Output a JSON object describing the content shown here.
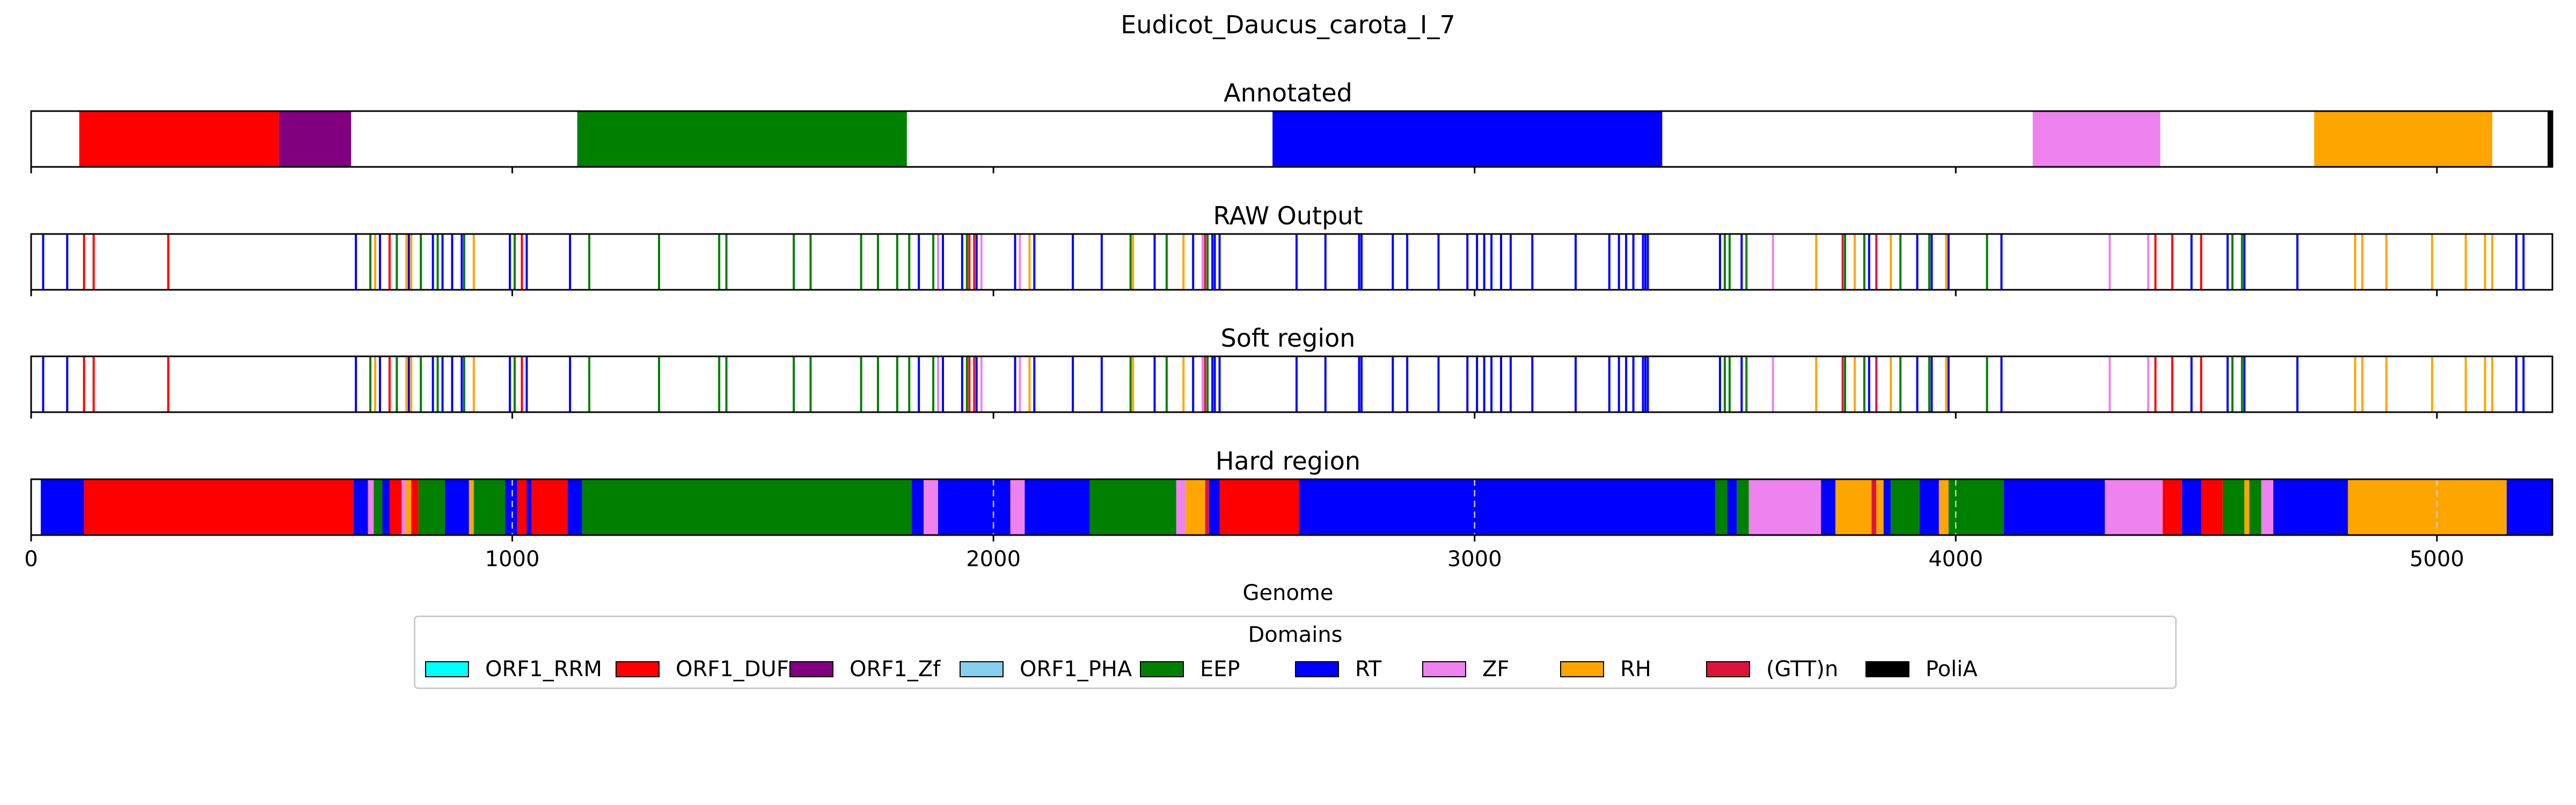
{
  "figure_title": "Eudicot_Daucus_carota_I_7",
  "legend": {
    "title": "Domains",
    "items": [
      {
        "label": "ORF1_RRM",
        "color": "#00ffff"
      },
      {
        "label": "ORF1_DUF",
        "color": "#ff0000"
      },
      {
        "label": "ORF1_Zf",
        "color": "#800080"
      },
      {
        "label": "ORF1_PHA",
        "color": "#87ceeb"
      },
      {
        "label": "EEP",
        "color": "#008000"
      },
      {
        "label": "RT",
        "color": "#0000ff"
      },
      {
        "label": "ZF",
        "color": "#ee82ee"
      },
      {
        "label": "RH",
        "color": "#ffa500"
      },
      {
        "label": "(GTT)n",
        "color": "#dc143c"
      },
      {
        "label": "PoliA",
        "color": "#000000"
      }
    ]
  },
  "chart_data": {
    "type": "track",
    "xlabel": "Genome",
    "xlim": [
      0,
      5240
    ],
    "xticks": [
      0,
      1000,
      2000,
      3000,
      4000,
      5000
    ],
    "grid": "dashed vertical lines on Hard region only",
    "tracks": [
      {
        "title": "Annotated",
        "segments": [
          {
            "domain": "ORF1_DUF",
            "start": 100,
            "end": 515
          },
          {
            "domain": "ORF1_Zf",
            "start": 515,
            "end": 665
          },
          {
            "domain": "EEP",
            "start": 1135,
            "end": 1820
          },
          {
            "domain": "RT",
            "start": 2580,
            "end": 3390
          },
          {
            "domain": "ZF",
            "start": 4160,
            "end": 4425
          },
          {
            "domain": "RH",
            "start": 4745,
            "end": 5115
          },
          {
            "domain": "PoliA",
            "start": 5230,
            "end": 5240
          }
        ]
      },
      {
        "title": "RAW Output",
        "marks": [
          {
            "domain": "RT",
            "x": [
              25,
              75,
              675,
              725,
              785,
              835,
              855,
              875,
              895,
              995,
              1030,
              1120,
              1845,
              1895,
              1935,
              1965,
              2045,
              2085,
              2165,
              2225,
              2335,
              2415,
              2435,
              2455,
              2460,
              2470,
              2630,
              2690,
              2760,
              2765,
              2830,
              2860,
              2925,
              2985,
              3005,
              3020,
              3035,
              3055,
              3075,
              3120,
              3210,
              3280,
              3300,
              3315,
              3330,
              3350,
              3355,
              3360,
              3510,
              3555,
              3820,
              3920,
              3950,
              3985,
              4095,
              4490,
              4565,
              4600,
              4710,
              5165,
              5180
            ]
          },
          {
            "domain": "ORF1_DUF",
            "x": [
              110,
              130,
              285,
              745,
              1020,
              1950,
              4415,
              4450,
              4510
            ]
          },
          {
            "domain": "EEP",
            "x": [
              705,
              760,
              810,
              845,
              900,
              1005,
              1160,
              1305,
              1430,
              1445,
              1585,
              1620,
              1725,
              1760,
              1800,
              1825,
              1875,
              1945,
              2285,
              2360,
              2445,
              3520,
              3530,
              3565,
              3770,
              3810,
              3885,
              3945,
              4065,
              4575,
              4595
            ]
          },
          {
            "domain": "ZF",
            "x": [
              1885,
              1975,
              2055,
              2435,
              3620,
              4320,
              4400
            ]
          },
          {
            "domain": "RH",
            "x": [
              715,
              780,
              790,
              920,
              2075,
              2290,
              2395,
              3710,
              3790,
              3865,
              3980,
              4830,
              4845,
              4895,
              4990,
              5060,
              5100,
              5115
            ]
          },
          {
            "domain": "(GTT)n",
            "x": [
              1960,
              2440,
              3765,
              3835
            ]
          }
        ]
      },
      {
        "title": "Soft region",
        "marks": [
          {
            "domain": "RT",
            "x": [
              25,
              75,
              675,
              725,
              785,
              835,
              855,
              875,
              895,
              995,
              1030,
              1120,
              1845,
              1895,
              1935,
              1965,
              2045,
              2085,
              2165,
              2225,
              2335,
              2415,
              2435,
              2455,
              2460,
              2470,
              2630,
              2690,
              2760,
              2765,
              2830,
              2860,
              2925,
              2985,
              3005,
              3020,
              3035,
              3055,
              3075,
              3120,
              3210,
              3280,
              3300,
              3315,
              3330,
              3350,
              3355,
              3360,
              3510,
              3555,
              3820,
              3920,
              3950,
              3985,
              4095,
              4490,
              4565,
              4600,
              4710,
              5165,
              5180
            ]
          },
          {
            "domain": "ORF1_DUF",
            "x": [
              110,
              130,
              285,
              745,
              1020,
              1950,
              4415,
              4450,
              4510
            ]
          },
          {
            "domain": "EEP",
            "x": [
              705,
              760,
              810,
              845,
              900,
              1005,
              1160,
              1305,
              1430,
              1445,
              1585,
              1620,
              1725,
              1760,
              1800,
              1825,
              1875,
              1945,
              2285,
              2360,
              2445,
              3520,
              3530,
              3565,
              3770,
              3810,
              3885,
              3945,
              4065,
              4575,
              4595
            ]
          },
          {
            "domain": "ZF",
            "x": [
              1885,
              1975,
              2055,
              2435,
              3620,
              4320,
              4400
            ]
          },
          {
            "domain": "RH",
            "x": [
              715,
              780,
              790,
              920,
              2075,
              2290,
              2395,
              3710,
              3790,
              3865,
              3980,
              4830,
              4845,
              4895,
              4990,
              5060,
              5100,
              5115
            ]
          },
          {
            "domain": "(GTT)n",
            "x": [
              1960,
              2440,
              3765,
              3835
            ]
          }
        ]
      },
      {
        "title": "Hard region",
        "segments": [
          {
            "domain": "RT",
            "start": 20,
            "end": 110
          },
          {
            "domain": "ORF1_DUF",
            "start": 110,
            "end": 670
          },
          {
            "domain": "RT",
            "start": 670,
            "end": 700
          },
          {
            "domain": "ZF",
            "start": 700,
            "end": 712
          },
          {
            "domain": "EEP",
            "start": 712,
            "end": 730
          },
          {
            "domain": "RT",
            "start": 730,
            "end": 745
          },
          {
            "domain": "ORF1_DUF",
            "start": 745,
            "end": 770
          },
          {
            "domain": "ZF",
            "start": 770,
            "end": 778
          },
          {
            "domain": "RH",
            "start": 778,
            "end": 790
          },
          {
            "domain": "ORF1_DUF",
            "start": 790,
            "end": 805
          },
          {
            "domain": "EEP",
            "start": 805,
            "end": 860
          },
          {
            "domain": "RT",
            "start": 860,
            "end": 910
          },
          {
            "domain": "RH",
            "start": 910,
            "end": 920
          },
          {
            "domain": "EEP",
            "start": 920,
            "end": 985
          },
          {
            "domain": "RT",
            "start": 985,
            "end": 1010
          },
          {
            "domain": "ORF1_DUF",
            "start": 1010,
            "end": 1030
          },
          {
            "domain": "RT",
            "start": 1030,
            "end": 1040
          },
          {
            "domain": "ORF1_DUF",
            "start": 1040,
            "end": 1115
          },
          {
            "domain": "RT",
            "start": 1115,
            "end": 1145
          },
          {
            "domain": "EEP",
            "start": 1145,
            "end": 1830
          },
          {
            "domain": "RT",
            "start": 1830,
            "end": 1855
          },
          {
            "domain": "ZF",
            "start": 1855,
            "end": 1885
          },
          {
            "domain": "RT",
            "start": 1885,
            "end": 2035
          },
          {
            "domain": "ZF",
            "start": 2035,
            "end": 2065
          },
          {
            "domain": "RT",
            "start": 2065,
            "end": 2200
          },
          {
            "domain": "EEP",
            "start": 2200,
            "end": 2380
          },
          {
            "domain": "ZF",
            "start": 2380,
            "end": 2400
          },
          {
            "domain": "RH",
            "start": 2400,
            "end": 2440
          },
          {
            "domain": "(GTT)n",
            "start": 2440,
            "end": 2448
          },
          {
            "domain": "RT",
            "start": 2448,
            "end": 2470
          },
          {
            "domain": "ORF1_DUF",
            "start": 2470,
            "end": 2635
          },
          {
            "domain": "RT",
            "start": 2635,
            "end": 3500
          },
          {
            "domain": "EEP",
            "start": 3500,
            "end": 3525
          },
          {
            "domain": "RT",
            "start": 3525,
            "end": 3545
          },
          {
            "domain": "EEP",
            "start": 3545,
            "end": 3570
          },
          {
            "domain": "ZF",
            "start": 3570,
            "end": 3720
          },
          {
            "domain": "RT",
            "start": 3720,
            "end": 3750
          },
          {
            "domain": "RH",
            "start": 3750,
            "end": 3825
          },
          {
            "domain": "(GTT)n",
            "start": 3825,
            "end": 3835
          },
          {
            "domain": "RH",
            "start": 3835,
            "end": 3850
          },
          {
            "domain": "RT",
            "start": 3850,
            "end": 3865
          },
          {
            "domain": "EEP",
            "start": 3865,
            "end": 3925
          },
          {
            "domain": "RT",
            "start": 3925,
            "end": 3965
          },
          {
            "domain": "RH",
            "start": 3965,
            "end": 3985
          },
          {
            "domain": "EEP",
            "start": 3985,
            "end": 4100
          },
          {
            "domain": "RT",
            "start": 4100,
            "end": 4310
          },
          {
            "domain": "ZF",
            "start": 4310,
            "end": 4430
          },
          {
            "domain": "ORF1_DUF",
            "start": 4430,
            "end": 4470
          },
          {
            "domain": "RT",
            "start": 4470,
            "end": 4510
          },
          {
            "domain": "ORF1_DUF",
            "start": 4510,
            "end": 4555
          },
          {
            "domain": "EEP",
            "start": 4555,
            "end": 4600
          },
          {
            "domain": "RH",
            "start": 4600,
            "end": 4610
          },
          {
            "domain": "EEP",
            "start": 4610,
            "end": 4635
          },
          {
            "domain": "ZF",
            "start": 4635,
            "end": 4660
          },
          {
            "domain": "RT",
            "start": 4660,
            "end": 4815
          },
          {
            "domain": "RH",
            "start": 4815,
            "end": 5145
          },
          {
            "domain": "RT",
            "start": 5145,
            "end": 5240
          }
        ]
      }
    ]
  }
}
